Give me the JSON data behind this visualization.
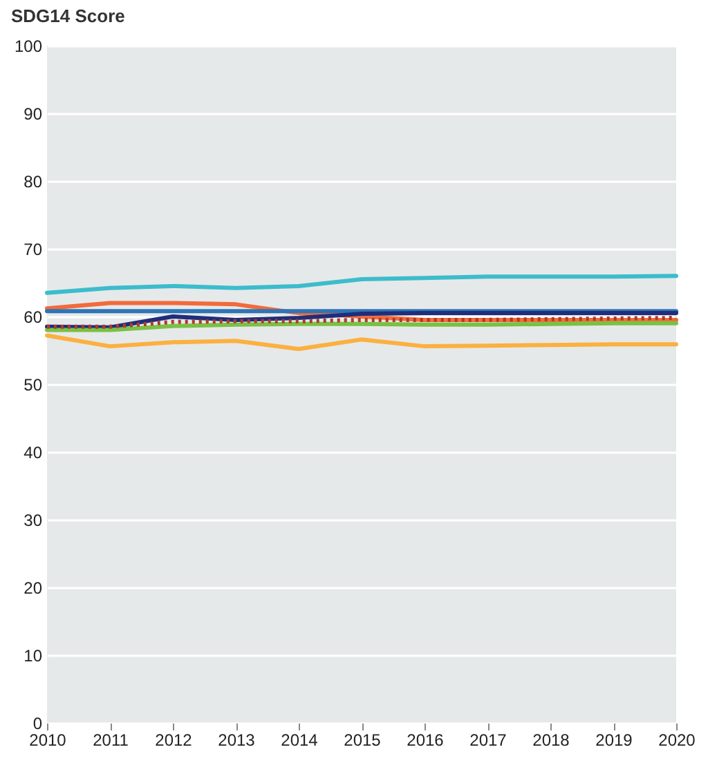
{
  "chart_data": {
    "type": "line",
    "ylabel": "SDG14 Score",
    "x": [
      2010,
      2011,
      2012,
      2013,
      2014,
      2015,
      2016,
      2017,
      2018,
      2019,
      2020
    ],
    "xlim": [
      2010,
      2020
    ],
    "xticks": [
      2010,
      2011,
      2012,
      2013,
      2014,
      2015,
      2016,
      2017,
      2018,
      2019,
      2020
    ],
    "ylim": [
      0,
      100
    ],
    "yticks": [
      0,
      10,
      20,
      30,
      40,
      50,
      60,
      70,
      80,
      90,
      100
    ],
    "grid": "y",
    "marker": "none",
    "series": [
      {
        "color": "#3cbccc",
        "values": [
          63.5,
          64.2,
          64.5,
          64.2,
          64.5,
          65.5,
          65.7,
          65.9,
          65.9,
          65.9,
          66
        ]
      },
      {
        "color": "#f26b3a",
        "values": [
          61.2,
          62,
          62,
          61.8,
          60.5,
          60,
          59.5,
          59.5,
          59.5,
          59.5,
          59.5
        ]
      },
      {
        "color": "#2e75b6",
        "values": [
          60.8,
          60.8,
          60.8,
          60.8,
          60.8,
          60.8,
          60.8,
          60.8,
          60.8,
          60.8,
          60.8
        ]
      },
      {
        "color": "#1f2d7a",
        "values": [
          58.5,
          58.4,
          60,
          59.5,
          59.8,
          60.4,
          60.5,
          60.5,
          60.5,
          60.5,
          60.5
        ]
      },
      {
        "color": "#7ac143",
        "values": [
          58,
          58,
          58.6,
          58.8,
          58.9,
          58.9,
          58.8,
          58.8,
          58.9,
          59,
          59
        ]
      },
      {
        "color": "#b03a2e",
        "line_style": "dotted",
        "values": [
          58.5,
          58.5,
          59.2,
          59.3,
          59.3,
          59.5,
          59.5,
          59.5,
          59.6,
          59.7,
          59.8
        ]
      },
      {
        "color": "#fbb040",
        "values": [
          57.2,
          55.6,
          56.2,
          56.4,
          55.2,
          56.6,
          55.6,
          55.7,
          55.8,
          55.9,
          55.9
        ]
      }
    ]
  }
}
